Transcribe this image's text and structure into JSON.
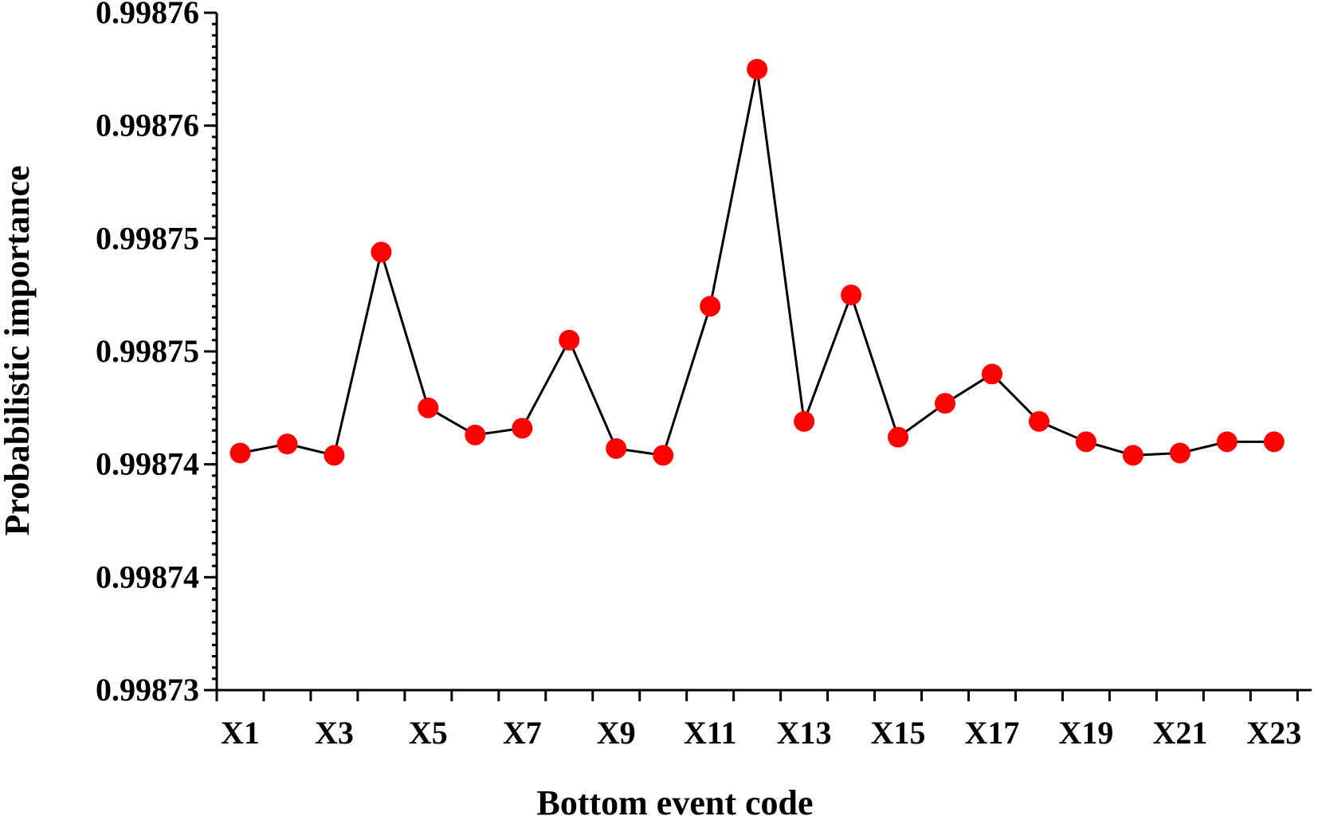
{
  "chart_data": {
    "type": "line",
    "xlabel": "Bottom event code",
    "ylabel": "Probabilistic  importance",
    "categories": [
      "X1",
      "X2",
      "X3",
      "X4",
      "X5",
      "X6",
      "X7",
      "X8",
      "X9",
      "X10",
      "X11",
      "X12",
      "X13",
      "X14",
      "X15",
      "X16",
      "X17",
      "X18",
      "X19",
      "X20",
      "X21",
      "X22",
      "X23"
    ],
    "x_tick_labels": [
      "X1",
      "X3",
      "X5",
      "X7",
      "X9",
      "X11",
      "X13",
      "X15",
      "X17",
      "X19",
      "X21",
      "X23"
    ],
    "ylim": [
      0.99873,
      0.99876
    ],
    "y_tick_values": [
      0.99873,
      0.998735,
      0.99874,
      0.998745,
      0.99875,
      0.998755,
      0.99876
    ],
    "y_tick_labels": [
      "0.99873",
      "0.99874",
      "0.99874",
      "0.99875",
      "0.99875",
      "0.99876",
      "0.99876"
    ],
    "series": [
      {
        "values": [
          0.9987405,
          0.9987409,
          0.9987404,
          0.9987494,
          0.9987425,
          0.9987413,
          0.9987416,
          0.9987455,
          0.9987407,
          0.9987404,
          0.998747,
          0.9987575,
          0.9987419,
          0.9987475,
          0.9987412,
          0.9987427,
          0.998744,
          0.9987419,
          0.998741,
          0.9987404,
          0.9987405,
          0.998741,
          0.998741
        ],
        "line_color": "#000000",
        "marker_color": "#ff0000"
      }
    ],
    "grid": false,
    "legend": "none"
  }
}
